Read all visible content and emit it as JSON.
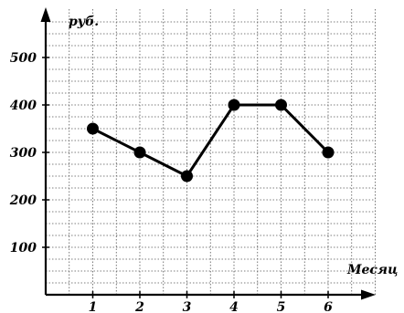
{
  "chart_data": {
    "type": "line",
    "title": "",
    "ylabel": "руб.",
    "xlabel": "Месяц",
    "categories": [
      "1",
      "2",
      "3",
      "4",
      "5",
      "6"
    ],
    "y_ticks": [
      "100",
      "200",
      "300",
      "400",
      "500"
    ],
    "ylim": [
      0,
      580
    ],
    "grid": true,
    "series": [
      {
        "values": [
          350,
          300,
          250,
          400,
          400,
          300
        ]
      }
    ]
  }
}
